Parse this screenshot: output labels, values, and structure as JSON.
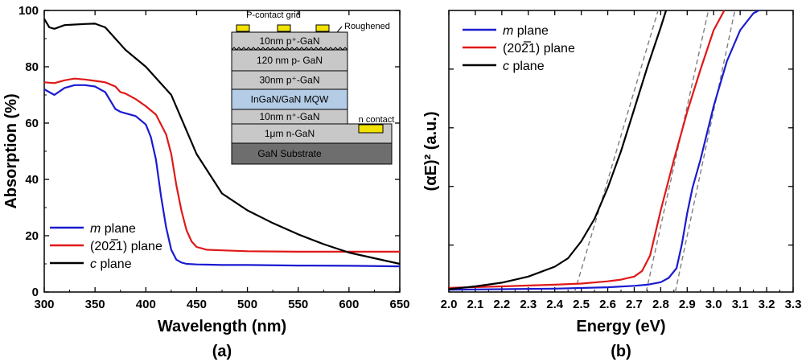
{
  "colors": {
    "m_plane": "#1a1ad0",
    "semipolar": "#e01818",
    "c_plane": "#000000",
    "fit": "#7f7f7f"
  },
  "chart_data": [
    {
      "panel_label": "(a)",
      "type": "line",
      "xlabel": "Wavelength (nm)",
      "ylabel": "Absorption (%)",
      "xlim": [
        300,
        650
      ],
      "ylim": [
        0,
        100
      ],
      "x_ticks": [
        "300",
        "350",
        "400",
        "450",
        "500",
        "550",
        "600",
        "650"
      ],
      "y_ticks": [
        "0",
        "20",
        "40",
        "60",
        "80",
        "100"
      ],
      "legend": {
        "placement": "bottom-left",
        "entries": [
          {
            "italic": "m",
            "rest": " plane"
          },
          {
            "italic": "",
            "rest": "(2021) plane"
          },
          {
            "italic": "c",
            "rest": " plane"
          }
        ]
      },
      "series": [
        {
          "name": "m plane",
          "color": "#1a1ad0",
          "x": [
            300,
            305,
            310,
            320,
            330,
            340,
            350,
            360,
            365,
            370,
            375,
            380,
            390,
            400,
            405,
            410,
            415,
            420,
            425,
            430,
            435,
            440,
            450,
            475,
            500,
            550,
            600,
            650
          ],
          "y": [
            72,
            71,
            70,
            72.5,
            73.5,
            73.5,
            73,
            71,
            68,
            65,
            64,
            63.5,
            62.5,
            59.5,
            55,
            47,
            34,
            23,
            15,
            11.5,
            10.5,
            10,
            9.8,
            9.6,
            9.6,
            9.4,
            9.3,
            9.1
          ]
        },
        {
          "name": "(2021) plane",
          "color": "#e01818",
          "x": [
            300,
            310,
            320,
            330,
            340,
            350,
            360,
            370,
            375,
            380,
            390,
            400,
            410,
            420,
            425,
            430,
            435,
            440,
            445,
            450,
            460,
            475,
            500,
            550,
            600,
            650
          ],
          "y": [
            74.5,
            74.2,
            75.2,
            75.8,
            75.5,
            75,
            74.5,
            73,
            71,
            70.5,
            68.5,
            66,
            63,
            56,
            49,
            38,
            29,
            22,
            18,
            16,
            15,
            14.8,
            14.5,
            14.3,
            14.3,
            14.3
          ]
        },
        {
          "name": "c plane",
          "color": "#000000",
          "x": [
            300,
            305,
            310,
            320,
            330,
            340,
            350,
            360,
            370,
            380,
            400,
            425,
            450,
            475,
            500,
            525,
            550,
            575,
            600,
            625,
            650
          ],
          "y": [
            97,
            94,
            93.5,
            94.8,
            95,
            95.2,
            95.3,
            94,
            90,
            86,
            80,
            70,
            49,
            35,
            29,
            24.5,
            20.5,
            17,
            14,
            12,
            10
          ]
        }
      ],
      "inset": {
        "top_label": "P-contact grid",
        "roughened_label": "Roughened",
        "n_contact_label": "n contact",
        "layers": [
          {
            "label": "10nm  p⁺-GaN",
            "fill": "#c8c8c8"
          },
          {
            "label": "120 nm p- GaN",
            "fill": "#c8c8c8"
          },
          {
            "label": "30nm  p⁺-GaN",
            "fill": "#c8c8c8"
          },
          {
            "label": "InGaN/GaN MQW",
            "fill": "#b4cce6"
          },
          {
            "label": "10nm  n⁺-GaN",
            "fill": "#c8c8c8"
          },
          {
            "label": "1μm  n-GaN",
            "fill": "#c8c8c8"
          },
          {
            "label": "GaN Substrate",
            "fill": "#6e6e6e"
          }
        ]
      }
    },
    {
      "panel_label": "(b)",
      "type": "line",
      "xlabel": "Energy (eV)",
      "ylabel": "(αE)² (a.u.)",
      "xlim": [
        2.0,
        3.3
      ],
      "ylim": [
        0,
        1
      ],
      "x_ticks": [
        "2.0",
        "2.1",
        "2.2",
        "2.3",
        "2.4",
        "2.5",
        "2.6",
        "2.7",
        "2.8",
        "2.9",
        "3.0",
        "3.1",
        "3.2",
        "3.3"
      ],
      "y_tick_labels_shown": false,
      "legend": {
        "placement": "top-left",
        "entries": [
          {
            "italic": "m",
            "rest": " plane"
          },
          {
            "italic": "",
            "rest": "(2021) plane"
          },
          {
            "italic": "c",
            "rest": " plane"
          }
        ]
      },
      "series": [
        {
          "name": "m plane",
          "color": "#1a1ad0",
          "x": [
            2.0,
            2.2,
            2.4,
            2.6,
            2.7,
            2.75,
            2.8,
            2.83,
            2.86,
            2.88,
            2.9,
            2.92,
            2.95,
            3.0,
            3.05,
            3.1,
            3.15,
            3.17
          ],
          "y": [
            0.008,
            0.01,
            0.012,
            0.017,
            0.022,
            0.026,
            0.035,
            0.05,
            0.085,
            0.17,
            0.28,
            0.37,
            0.47,
            0.66,
            0.82,
            0.93,
            0.99,
            1.0
          ]
        },
        {
          "name": "(2021) plane",
          "color": "#e01818",
          "x": [
            2.0,
            2.2,
            2.4,
            2.5,
            2.6,
            2.65,
            2.7,
            2.73,
            2.76,
            2.8,
            2.85,
            2.9,
            2.95,
            3.0,
            3.04
          ],
          "y": [
            0.015,
            0.02,
            0.026,
            0.03,
            0.038,
            0.044,
            0.055,
            0.075,
            0.13,
            0.29,
            0.47,
            0.64,
            0.79,
            0.93,
            1.0
          ]
        },
        {
          "name": "c plane",
          "color": "#000000",
          "x": [
            2.0,
            2.1,
            2.2,
            2.3,
            2.4,
            2.45,
            2.5,
            2.55,
            2.6,
            2.65,
            2.7,
            2.75,
            2.8,
            2.82
          ],
          "y": [
            0.01,
            0.02,
            0.033,
            0.055,
            0.09,
            0.12,
            0.18,
            0.26,
            0.37,
            0.5,
            0.65,
            0.8,
            0.94,
            1.0
          ]
        }
      ],
      "fit_lines": [
        {
          "color": "#7f7f7f",
          "x": [
            2.475,
            2.79
          ],
          "y": [
            0.0,
            1.0
          ]
        },
        {
          "color": "#7f7f7f",
          "x": [
            2.745,
            2.98
          ],
          "y": [
            0.0,
            1.0
          ]
        },
        {
          "color": "#7f7f7f",
          "x": [
            2.855,
            3.08
          ],
          "y": [
            0.0,
            1.0
          ]
        }
      ]
    }
  ]
}
